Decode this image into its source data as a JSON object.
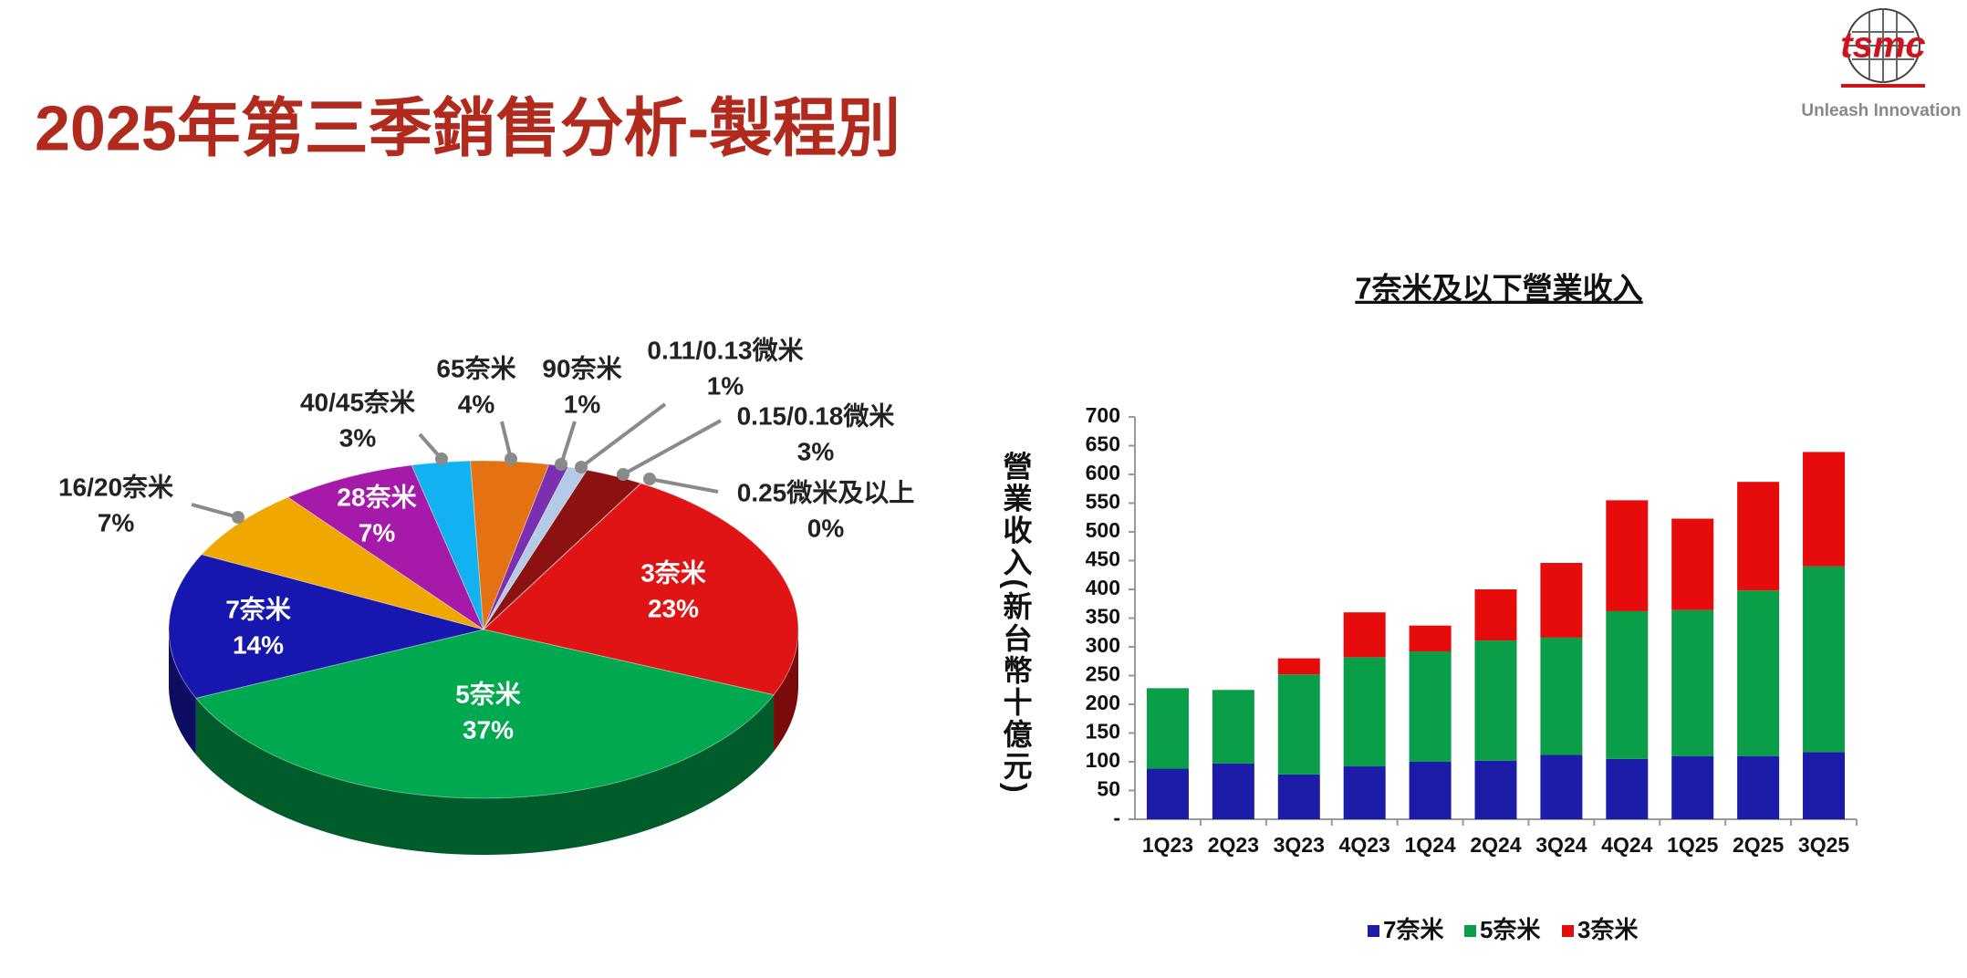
{
  "header": {
    "title": "2025年第三季銷售分析-製程別",
    "logo": "tsmc",
    "tagline": "Unleash Innovation"
  },
  "chart_data": [
    {
      "type": "pie",
      "categories": [
        "3奈米",
        "5奈米",
        "7奈米",
        "16/20奈米",
        "28奈米",
        "40/45奈米",
        "65奈米",
        "90奈米",
        "0.11/0.13微米",
        "0.15/0.18微米",
        "0.25微米及以上"
      ],
      "values": [
        23,
        37,
        14,
        7,
        7,
        3,
        4,
        1,
        1,
        3,
        0
      ],
      "value_labels": [
        "23%",
        "37%",
        "14%",
        "7%",
        "7%",
        "3%",
        "4%",
        "1%",
        "1%",
        "3%",
        "0%"
      ],
      "colors": [
        "#e01414",
        "#00a84f",
        "#1717b0",
        "#f0a800",
        "#a51aa8",
        "#12b2f0",
        "#e57212",
        "#7a30b0",
        "#b4cbe8",
        "#8c1212",
        "#5e0000"
      ]
    },
    {
      "type": "bar",
      "title": "7奈米及以下營業收入",
      "y_label": "營業收入(新台幣十億元)",
      "categories": [
        "1Q23",
        "2Q23",
        "3Q23",
        "4Q23",
        "1Q24",
        "2Q24",
        "3Q24",
        "4Q24",
        "1Q25",
        "2Q25",
        "3Q25"
      ],
      "stacked": true,
      "series": [
        {
          "name": "7奈米",
          "color": "#1c1ca8",
          "values": [
            88,
            97,
            78,
            92,
            100,
            102,
            112,
            105,
            110,
            110,
            117
          ]
        },
        {
          "name": "5奈米",
          "color": "#0a9e48",
          "values": [
            140,
            128,
            174,
            190,
            192,
            209,
            204,
            257,
            254,
            288,
            323
          ]
        },
        {
          "name": "3奈米",
          "color": "#e60c0c",
          "values": [
            0,
            0,
            28,
            78,
            45,
            89,
            130,
            193,
            159,
            189,
            199
          ]
        }
      ],
      "ylim": [
        0,
        700
      ],
      "yticks": [
        {
          "value": 0,
          "label": "-"
        },
        50,
        100,
        150,
        200,
        250,
        300,
        350,
        400,
        450,
        500,
        550,
        600,
        650,
        700
      ],
      "grid": false
    }
  ]
}
